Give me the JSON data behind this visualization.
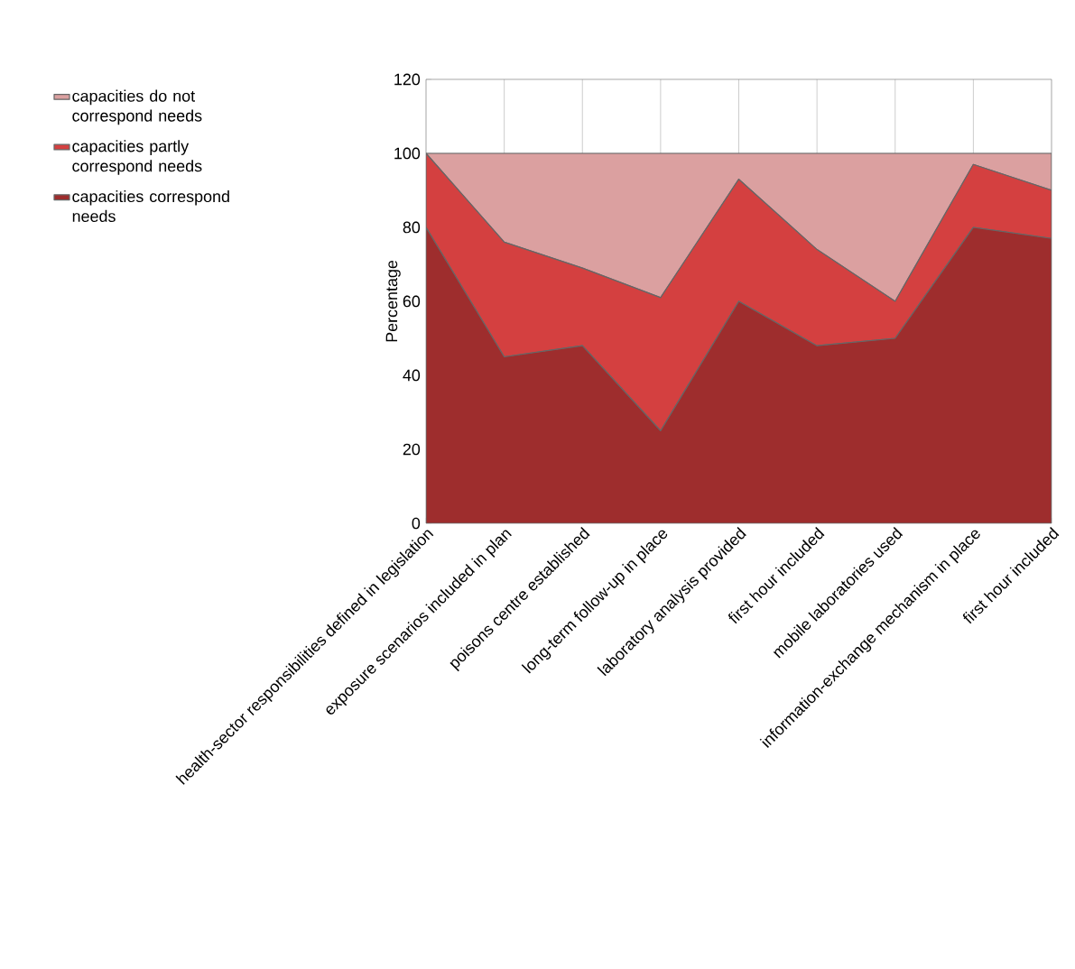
{
  "chart_data": {
    "type": "area",
    "stacked": true,
    "ylabel": "Percentage",
    "categories": [
      "health-sector responsibilities defined in legislation",
      "exposure scenarios included in plan",
      "poisons centre established",
      "long-term follow-up in place",
      "laboratory analysis provided",
      "first hour included",
      "mobile laboratories used",
      "information-exchange mechanism in place",
      "first hour included"
    ],
    "series": [
      {
        "name": "capacities correspond needs",
        "color": "#9e2d2d",
        "values": [
          80,
          45,
          48,
          25,
          60,
          48,
          50,
          80,
          77
        ]
      },
      {
        "name": "capacities partly correspond needs",
        "color": "#d44040",
        "values": [
          20,
          31,
          21,
          36,
          33,
          26,
          10,
          17,
          13
        ]
      },
      {
        "name": "capacities do not correspond needs",
        "color": "#dba0a0",
        "values": [
          0,
          24,
          31,
          39,
          7,
          26,
          40,
          3,
          10
        ]
      }
    ],
    "ylim": [
      0,
      120
    ],
    "yticks": [
      0,
      20,
      40,
      60,
      80,
      100,
      120
    ],
    "grid": true,
    "legend": "top left"
  }
}
